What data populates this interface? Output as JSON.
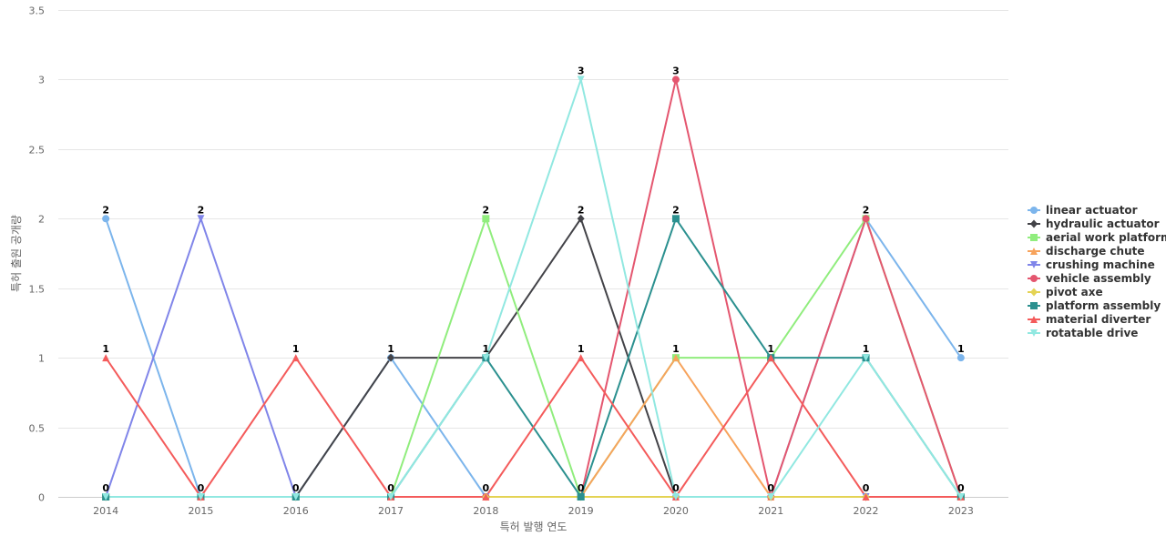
{
  "chart_data": {
    "type": "line",
    "xlabel": "특허 발행 연도",
    "ylabel": "특허 출원 공개량",
    "ylim": [
      0,
      3.5
    ],
    "y_ticks": [
      "0",
      "0.5",
      "1",
      "1.5",
      "2",
      "2.5",
      "3",
      "3.5"
    ],
    "categories": [
      "2014",
      "2015",
      "2016",
      "2017",
      "2018",
      "2019",
      "2020",
      "2021",
      "2022",
      "2023"
    ],
    "grid": true,
    "legend_position": "right",
    "series": [
      {
        "name": "linear actuator",
        "color": "#7cb5ec",
        "marker": "circle",
        "values": [
          2,
          0,
          0,
          1,
          0,
          0,
          0,
          0,
          2,
          1
        ]
      },
      {
        "name": "hydraulic actuator",
        "color": "#434348",
        "marker": "diamond",
        "values": [
          0,
          0,
          0,
          1,
          1,
          2,
          0,
          0,
          0,
          0
        ]
      },
      {
        "name": "aerial work platform",
        "color": "#90ed7d",
        "marker": "square",
        "values": [
          0,
          0,
          0,
          0,
          2,
          0,
          1,
          1,
          2,
          0
        ]
      },
      {
        "name": "discharge chute",
        "color": "#f7a35c",
        "marker": "triangle",
        "values": [
          0,
          0,
          0,
          0,
          0,
          0,
          1,
          0,
          0,
          0
        ]
      },
      {
        "name": "crushing machine",
        "color": "#8085e9",
        "marker": "triangle-down",
        "values": [
          0,
          2,
          0,
          0,
          0,
          0,
          0,
          0,
          0,
          0
        ]
      },
      {
        "name": "vehicle assembly",
        "color": "#e4566f",
        "marker": "circle",
        "values": [
          0,
          0,
          0,
          0,
          0,
          0,
          3,
          0,
          2,
          0
        ]
      },
      {
        "name": "pivot axe",
        "color": "#e4d354",
        "marker": "diamond",
        "values": [
          0,
          0,
          0,
          0,
          0,
          0,
          0,
          0,
          0,
          0
        ]
      },
      {
        "name": "platform assembly",
        "color": "#2b908f",
        "marker": "square",
        "values": [
          0,
          0,
          0,
          0,
          1,
          0,
          2,
          1,
          1,
          0
        ]
      },
      {
        "name": "material diverter",
        "color": "#f45b5b",
        "marker": "triangle",
        "values": [
          1,
          0,
          1,
          0,
          0,
          1,
          0,
          1,
          0,
          0
        ]
      },
      {
        "name": "rotatable drive",
        "color": "#91e8e1",
        "marker": "triangle-down",
        "values": [
          0,
          0,
          0,
          0,
          1,
          3,
          0,
          0,
          1,
          0
        ]
      }
    ],
    "data_labels": [
      {
        "category": "2014",
        "values": [
          "2",
          "1",
          "0"
        ]
      },
      {
        "category": "2015",
        "values": [
          "2",
          "0"
        ]
      },
      {
        "category": "2016",
        "values": [
          "1",
          "0"
        ]
      },
      {
        "category": "2017",
        "values": [
          "1",
          "0"
        ]
      },
      {
        "category": "2018",
        "values": [
          "2",
          "1",
          "0"
        ]
      },
      {
        "category": "2019",
        "values": [
          "3",
          "2",
          "1",
          "0"
        ]
      },
      {
        "category": "2020",
        "values": [
          "3",
          "2",
          "1",
          "0"
        ]
      },
      {
        "category": "2021",
        "values": [
          "1",
          "0"
        ]
      },
      {
        "category": "2022",
        "values": [
          "2",
          "1",
          "0"
        ]
      },
      {
        "category": "2023",
        "values": [
          "1",
          "0"
        ]
      }
    ]
  }
}
